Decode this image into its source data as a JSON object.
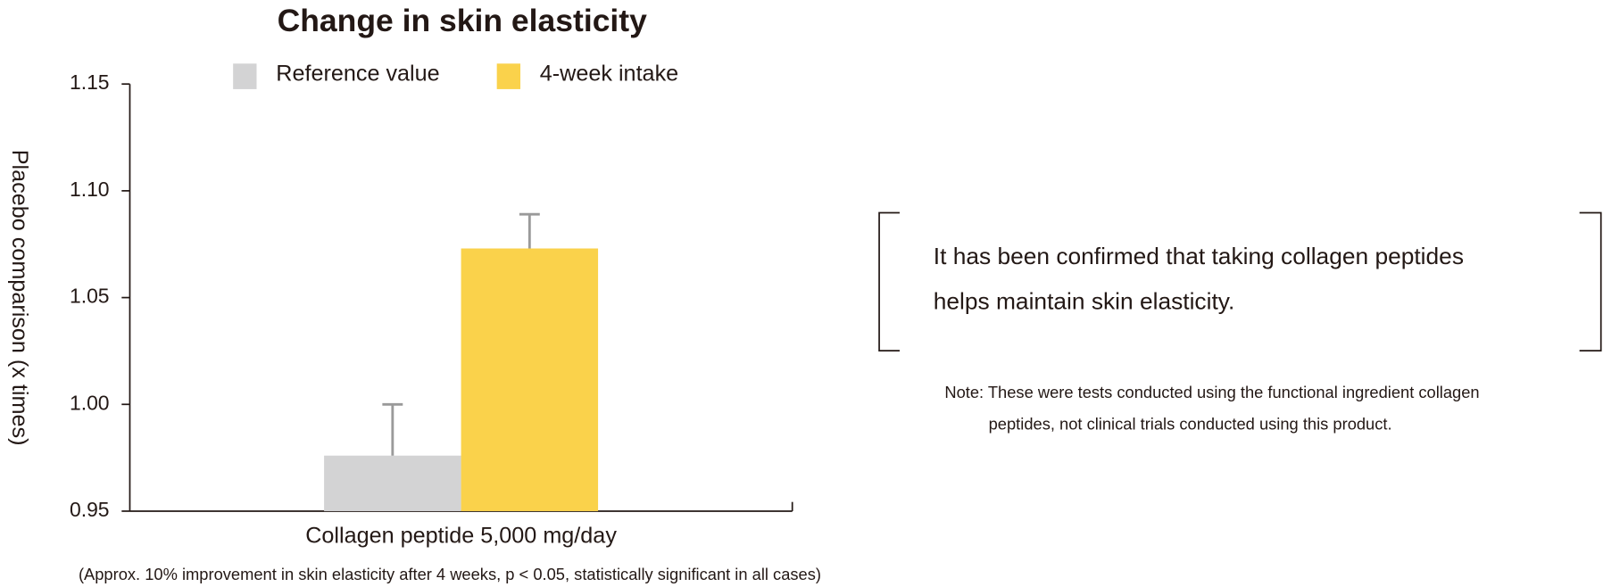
{
  "chart_data": {
    "type": "bar",
    "title": "Change in skin elasticity",
    "y_label": "Placebo comparison (x times)",
    "categories": [
      "Collagen peptide 5,000 mg/day"
    ],
    "series": [
      {
        "name": "Reference value",
        "color": "#d3d3d4",
        "values": [
          0.976
        ],
        "errors": [
          0.024
        ]
      },
      {
        "name": "4-week intake",
        "color": "#fad24b",
        "values": [
          1.073
        ],
        "errors": [
          0.016
        ]
      }
    ],
    "ylim": [
      0.95,
      1.15
    ],
    "yticks": [
      0.95,
      {
        "value": 1.0,
        "label": "1.00"
      },
      1.05,
      {
        "value": 1.1,
        "label": "1.10"
      },
      1.15
    ],
    "caption": "(Approx. 10% improvement in skin elasticity after 4 weeks, p < 0.05, statistically significant in all cases)"
  },
  "statement": [
    "It has been confirmed that taking collagen peptides",
    "helps maintain skin elasticity."
  ],
  "note": [
    "Note: These were tests conducted using the functional ingredient collagen",
    "peptides, not clinical trials conducted using this product."
  ]
}
